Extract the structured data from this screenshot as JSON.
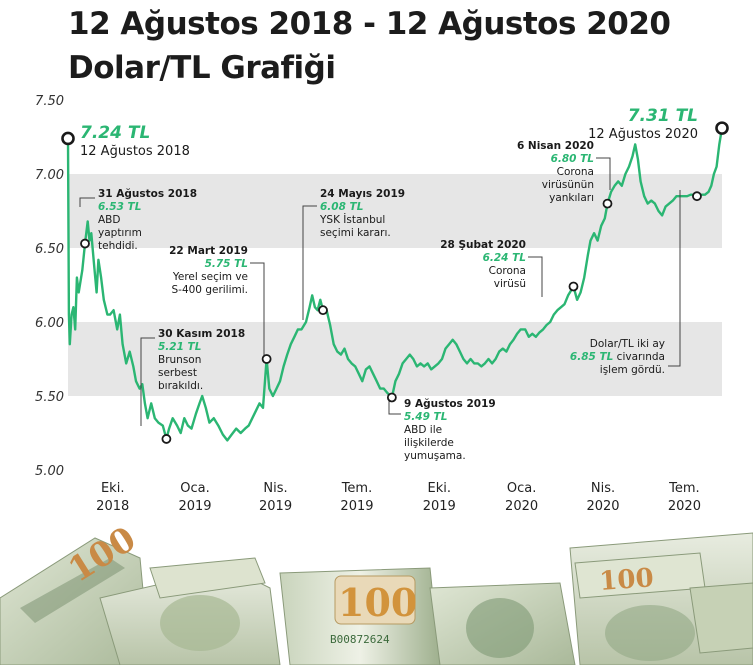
{
  "title": {
    "line1": "12 Ağustos 2018 - 12 Ağustos 2020",
    "line2": "Dolar/TL Grafiği"
  },
  "colors": {
    "line": "#2bb673",
    "band": "#e6e6e6",
    "accent_text": "#2bb673",
    "marker": "#1a1a1a"
  },
  "chart_data": {
    "type": "line",
    "x_range": [
      "2018-08-12",
      "2020-08-12"
    ],
    "ylim": [
      5.0,
      7.5
    ],
    "yticks": [
      5.0,
      5.5,
      6.0,
      6.5,
      7.0,
      7.5
    ],
    "ytick_labels": [
      "5.00",
      "5.50",
      "6.00",
      "6.50",
      "7.00",
      "7.50"
    ],
    "xticks": [
      {
        "date": "2018-10-01",
        "month": "Eki.",
        "year": "2018"
      },
      {
        "date": "2019-01-01",
        "month": "Oca.",
        "year": "2019"
      },
      {
        "date": "2019-04-01",
        "month": "Nis.",
        "year": "2019"
      },
      {
        "date": "2019-07-01",
        "month": "Tem.",
        "year": "2019"
      },
      {
        "date": "2019-10-01",
        "month": "Eki.",
        "year": "2019"
      },
      {
        "date": "2020-01-01",
        "month": "Oca.",
        "year": "2020"
      },
      {
        "date": "2020-04-01",
        "month": "Nis.",
        "year": "2020"
      },
      {
        "date": "2020-07-01",
        "month": "Tem.",
        "year": "2020"
      }
    ],
    "bands": [
      [
        6.5,
        7.0
      ],
      [
        5.5,
        6.0
      ]
    ],
    "series": [
      {
        "points": [
          [
            "2018-08-12",
            7.24
          ],
          [
            "2018-08-13",
            6.05
          ],
          [
            "2018-08-14",
            5.85
          ],
          [
            "2018-08-16",
            6.05
          ],
          [
            "2018-08-18",
            6.1
          ],
          [
            "2018-08-20",
            5.95
          ],
          [
            "2018-08-22",
            6.3
          ],
          [
            "2018-08-24",
            6.2
          ],
          [
            "2018-08-28",
            6.35
          ],
          [
            "2018-08-31",
            6.53
          ],
          [
            "2018-09-03",
            6.68
          ],
          [
            "2018-09-05",
            6.55
          ],
          [
            "2018-09-07",
            6.6
          ],
          [
            "2018-09-10",
            6.4
          ],
          [
            "2018-09-13",
            6.2
          ],
          [
            "2018-09-15",
            6.42
          ],
          [
            "2018-09-18",
            6.3
          ],
          [
            "2018-09-21",
            6.15
          ],
          [
            "2018-09-25",
            6.05
          ],
          [
            "2018-09-28",
            6.05
          ],
          [
            "2018-10-02",
            6.08
          ],
          [
            "2018-10-06",
            5.95
          ],
          [
            "2018-10-09",
            6.05
          ],
          [
            "2018-10-12",
            5.85
          ],
          [
            "2018-10-16",
            5.72
          ],
          [
            "2018-10-20",
            5.8
          ],
          [
            "2018-10-24",
            5.7
          ],
          [
            "2018-10-27",
            5.6
          ],
          [
            "2018-10-31",
            5.55
          ],
          [
            "2018-11-03",
            5.58
          ],
          [
            "2018-11-06",
            5.45
          ],
          [
            "2018-11-09",
            5.35
          ],
          [
            "2018-11-13",
            5.45
          ],
          [
            "2018-11-17",
            5.35
          ],
          [
            "2018-11-21",
            5.32
          ],
          [
            "2018-11-26",
            5.3
          ],
          [
            "2018-11-30",
            5.21
          ],
          [
            "2018-12-03",
            5.28
          ],
          [
            "2018-12-07",
            5.35
          ],
          [
            "2018-12-12",
            5.3
          ],
          [
            "2018-12-16",
            5.25
          ],
          [
            "2018-12-20",
            5.35
          ],
          [
            "2018-12-24",
            5.3
          ],
          [
            "2018-12-28",
            5.28
          ],
          [
            "2019-01-02",
            5.38
          ],
          [
            "2019-01-06",
            5.45
          ],
          [
            "2019-01-09",
            5.5
          ],
          [
            "2019-01-13",
            5.42
          ],
          [
            "2019-01-17",
            5.32
          ],
          [
            "2019-01-22",
            5.35
          ],
          [
            "2019-01-27",
            5.3
          ],
          [
            "2019-02-01",
            5.24
          ],
          [
            "2019-02-06",
            5.2
          ],
          [
            "2019-02-11",
            5.24
          ],
          [
            "2019-02-16",
            5.28
          ],
          [
            "2019-02-21",
            5.25
          ],
          [
            "2019-02-26",
            5.28
          ],
          [
            "2019-03-02",
            5.3
          ],
          [
            "2019-03-06",
            5.35
          ],
          [
            "2019-03-10",
            5.4
          ],
          [
            "2019-03-14",
            5.45
          ],
          [
            "2019-03-18",
            5.42
          ],
          [
            "2019-03-22",
            5.75
          ],
          [
            "2019-03-25",
            5.55
          ],
          [
            "2019-03-29",
            5.5
          ],
          [
            "2019-04-02",
            5.55
          ],
          [
            "2019-04-06",
            5.6
          ],
          [
            "2019-04-10",
            5.7
          ],
          [
            "2019-04-14",
            5.78
          ],
          [
            "2019-04-18",
            5.85
          ],
          [
            "2019-04-22",
            5.9
          ],
          [
            "2019-04-26",
            5.95
          ],
          [
            "2019-04-30",
            5.95
          ],
          [
            "2019-05-05",
            6.0
          ],
          [
            "2019-05-09",
            6.1
          ],
          [
            "2019-05-12",
            6.18
          ],
          [
            "2019-05-15",
            6.1
          ],
          [
            "2019-05-18",
            6.08
          ],
          [
            "2019-05-21",
            6.15
          ],
          [
            "2019-05-24",
            6.08
          ],
          [
            "2019-05-28",
            6.08
          ],
          [
            "2019-06-01",
            5.98
          ],
          [
            "2019-06-05",
            5.85
          ],
          [
            "2019-06-09",
            5.8
          ],
          [
            "2019-06-13",
            5.78
          ],
          [
            "2019-06-17",
            5.82
          ],
          [
            "2019-06-21",
            5.75
          ],
          [
            "2019-06-25",
            5.72
          ],
          [
            "2019-06-29",
            5.7
          ],
          [
            "2019-07-03",
            5.65
          ],
          [
            "2019-07-07",
            5.6
          ],
          [
            "2019-07-11",
            5.68
          ],
          [
            "2019-07-15",
            5.7
          ],
          [
            "2019-07-19",
            5.65
          ],
          [
            "2019-07-23",
            5.6
          ],
          [
            "2019-07-27",
            5.55
          ],
          [
            "2019-07-31",
            5.55
          ],
          [
            "2019-08-04",
            5.52
          ],
          [
            "2019-08-09",
            5.49
          ],
          [
            "2019-08-13",
            5.6
          ],
          [
            "2019-08-17",
            5.65
          ],
          [
            "2019-08-21",
            5.72
          ],
          [
            "2019-08-25",
            5.75
          ],
          [
            "2019-08-29",
            5.78
          ],
          [
            "2019-09-02",
            5.75
          ],
          [
            "2019-09-06",
            5.7
          ],
          [
            "2019-09-10",
            5.72
          ],
          [
            "2019-09-14",
            5.7
          ],
          [
            "2019-09-18",
            5.72
          ],
          [
            "2019-09-22",
            5.68
          ],
          [
            "2019-09-26",
            5.7
          ],
          [
            "2019-09-30",
            5.72
          ],
          [
            "2019-10-04",
            5.75
          ],
          [
            "2019-10-08",
            5.82
          ],
          [
            "2019-10-12",
            5.85
          ],
          [
            "2019-10-16",
            5.88
          ],
          [
            "2019-10-20",
            5.85
          ],
          [
            "2019-10-24",
            5.8
          ],
          [
            "2019-10-28",
            5.75
          ],
          [
            "2019-11-01",
            5.72
          ],
          [
            "2019-11-05",
            5.75
          ],
          [
            "2019-11-09",
            5.72
          ],
          [
            "2019-11-13",
            5.72
          ],
          [
            "2019-11-17",
            5.7
          ],
          [
            "2019-11-21",
            5.72
          ],
          [
            "2019-11-25",
            5.75
          ],
          [
            "2019-11-29",
            5.72
          ],
          [
            "2019-12-03",
            5.75
          ],
          [
            "2019-12-07",
            5.8
          ],
          [
            "2019-12-11",
            5.82
          ],
          [
            "2019-12-15",
            5.8
          ],
          [
            "2019-12-19",
            5.85
          ],
          [
            "2019-12-23",
            5.88
          ],
          [
            "2019-12-27",
            5.92
          ],
          [
            "2019-12-31",
            5.95
          ],
          [
            "2020-01-05",
            5.95
          ],
          [
            "2020-01-09",
            5.9
          ],
          [
            "2020-01-13",
            5.92
          ],
          [
            "2020-01-17",
            5.9
          ],
          [
            "2020-01-21",
            5.93
          ],
          [
            "2020-01-25",
            5.95
          ],
          [
            "2020-01-29",
            5.98
          ],
          [
            "2020-02-02",
            6.0
          ],
          [
            "2020-02-06",
            6.05
          ],
          [
            "2020-02-10",
            6.08
          ],
          [
            "2020-02-14",
            6.1
          ],
          [
            "2020-02-18",
            6.12
          ],
          [
            "2020-02-22",
            6.18
          ],
          [
            "2020-02-28",
            6.24
          ],
          [
            "2020-03-03",
            6.15
          ],
          [
            "2020-03-07",
            6.2
          ],
          [
            "2020-03-11",
            6.3
          ],
          [
            "2020-03-15",
            6.45
          ],
          [
            "2020-03-18",
            6.55
          ],
          [
            "2020-03-22",
            6.6
          ],
          [
            "2020-03-26",
            6.55
          ],
          [
            "2020-03-30",
            6.65
          ],
          [
            "2020-04-03",
            6.7
          ],
          [
            "2020-04-06",
            6.8
          ],
          [
            "2020-04-10",
            6.88
          ],
          [
            "2020-04-14",
            6.92
          ],
          [
            "2020-04-18",
            6.95
          ],
          [
            "2020-04-22",
            6.92
          ],
          [
            "2020-04-26",
            7.0
          ],
          [
            "2020-04-30",
            7.05
          ],
          [
            "2020-05-04",
            7.12
          ],
          [
            "2020-05-07",
            7.2
          ],
          [
            "2020-05-10",
            7.1
          ],
          [
            "2020-05-13",
            6.95
          ],
          [
            "2020-05-17",
            6.85
          ],
          [
            "2020-05-21",
            6.8
          ],
          [
            "2020-05-25",
            6.82
          ],
          [
            "2020-05-29",
            6.8
          ],
          [
            "2020-06-02",
            6.75
          ],
          [
            "2020-06-06",
            6.72
          ],
          [
            "2020-06-10",
            6.78
          ],
          [
            "2020-06-14",
            6.8
          ],
          [
            "2020-06-18",
            6.82
          ],
          [
            "2020-06-22",
            6.85
          ],
          [
            "2020-06-26",
            6.85
          ],
          [
            "2020-06-30",
            6.85
          ],
          [
            "2020-07-04",
            6.85
          ],
          [
            "2020-07-08",
            6.86
          ],
          [
            "2020-07-12",
            6.86
          ],
          [
            "2020-07-16",
            6.86
          ],
          [
            "2020-07-20",
            6.86
          ],
          [
            "2020-07-24",
            6.86
          ],
          [
            "2020-07-28",
            6.88
          ],
          [
            "2020-07-31",
            6.92
          ],
          [
            "2020-08-03",
            7.0
          ],
          [
            "2020-08-06",
            7.05
          ],
          [
            "2020-08-09",
            7.2
          ],
          [
            "2020-08-12",
            7.31
          ]
        ]
      }
    ],
    "annotations": [
      {
        "id": "start",
        "date": "2018-08-12",
        "value": 7.24,
        "value_label": "7.24 TL",
        "lines": [
          "12 Ağustos 2018"
        ],
        "style": "big",
        "text_side": "right"
      },
      {
        "id": "end",
        "date": "2020-08-12",
        "value": 7.31,
        "value_label": "7.31 TL",
        "lines": [
          "12 Ağustos 2020"
        ],
        "style": "big",
        "text_side": "left"
      },
      {
        "id": "aug31",
        "date": "2018-08-31",
        "value": 6.53,
        "title": "31 Ağustos 2018",
        "value_label": "6.53 TL",
        "lines": [
          "ABD",
          "yaptırım",
          "tehdidi."
        ]
      },
      {
        "id": "nov30",
        "date": "2018-11-30",
        "value": 5.21,
        "title": "30 Kasım 2018",
        "value_label": "5.21 TL",
        "lines": [
          "Brunson",
          "serbest",
          "bırakıldı."
        ]
      },
      {
        "id": "mar22",
        "date": "2019-03-22",
        "value": 5.75,
        "title": "22 Mart 2019",
        "value_label": "5.75 TL",
        "lines": [
          "Yerel seçim ve",
          "S-400 gerilimi."
        ]
      },
      {
        "id": "may24",
        "date": "2019-05-24",
        "value": 6.08,
        "title": "24 Mayıs 2019",
        "value_label": "6.08 TL",
        "lines": [
          "YSK İstanbul",
          "seçimi kararı."
        ]
      },
      {
        "id": "aug9",
        "date": "2019-08-09",
        "value": 5.49,
        "title": "9 Ağustos 2019",
        "value_label": "5.49 TL",
        "lines": [
          "ABD ile",
          "ilişkilerde",
          "yumuşama."
        ]
      },
      {
        "id": "feb28",
        "date": "2020-02-28",
        "value": 6.24,
        "title": "28 Şubat 2020",
        "value_label": "6.24 TL",
        "lines": [
          "Corona",
          "virüsü"
        ]
      },
      {
        "id": "apr6",
        "date": "2020-04-06",
        "value": 6.8,
        "title": "6 Nisan 2020",
        "value_label": "6.80 TL",
        "lines": [
          "Corona",
          "virüsünün",
          "yankıları"
        ]
      },
      {
        "id": "july",
        "date": "2020-07-15",
        "value": 6.85,
        "title": "",
        "value_label": "6.85 TL",
        "pre_lines": [
          "Dolar/TL iki ay"
        ],
        "suffix": " civarında",
        "lines": [
          "işlem gördü."
        ]
      }
    ]
  },
  "footer_image": {
    "kind": "banknotes-photo",
    "visible_text": [
      "100",
      "100",
      "100",
      "B00872624"
    ]
  }
}
